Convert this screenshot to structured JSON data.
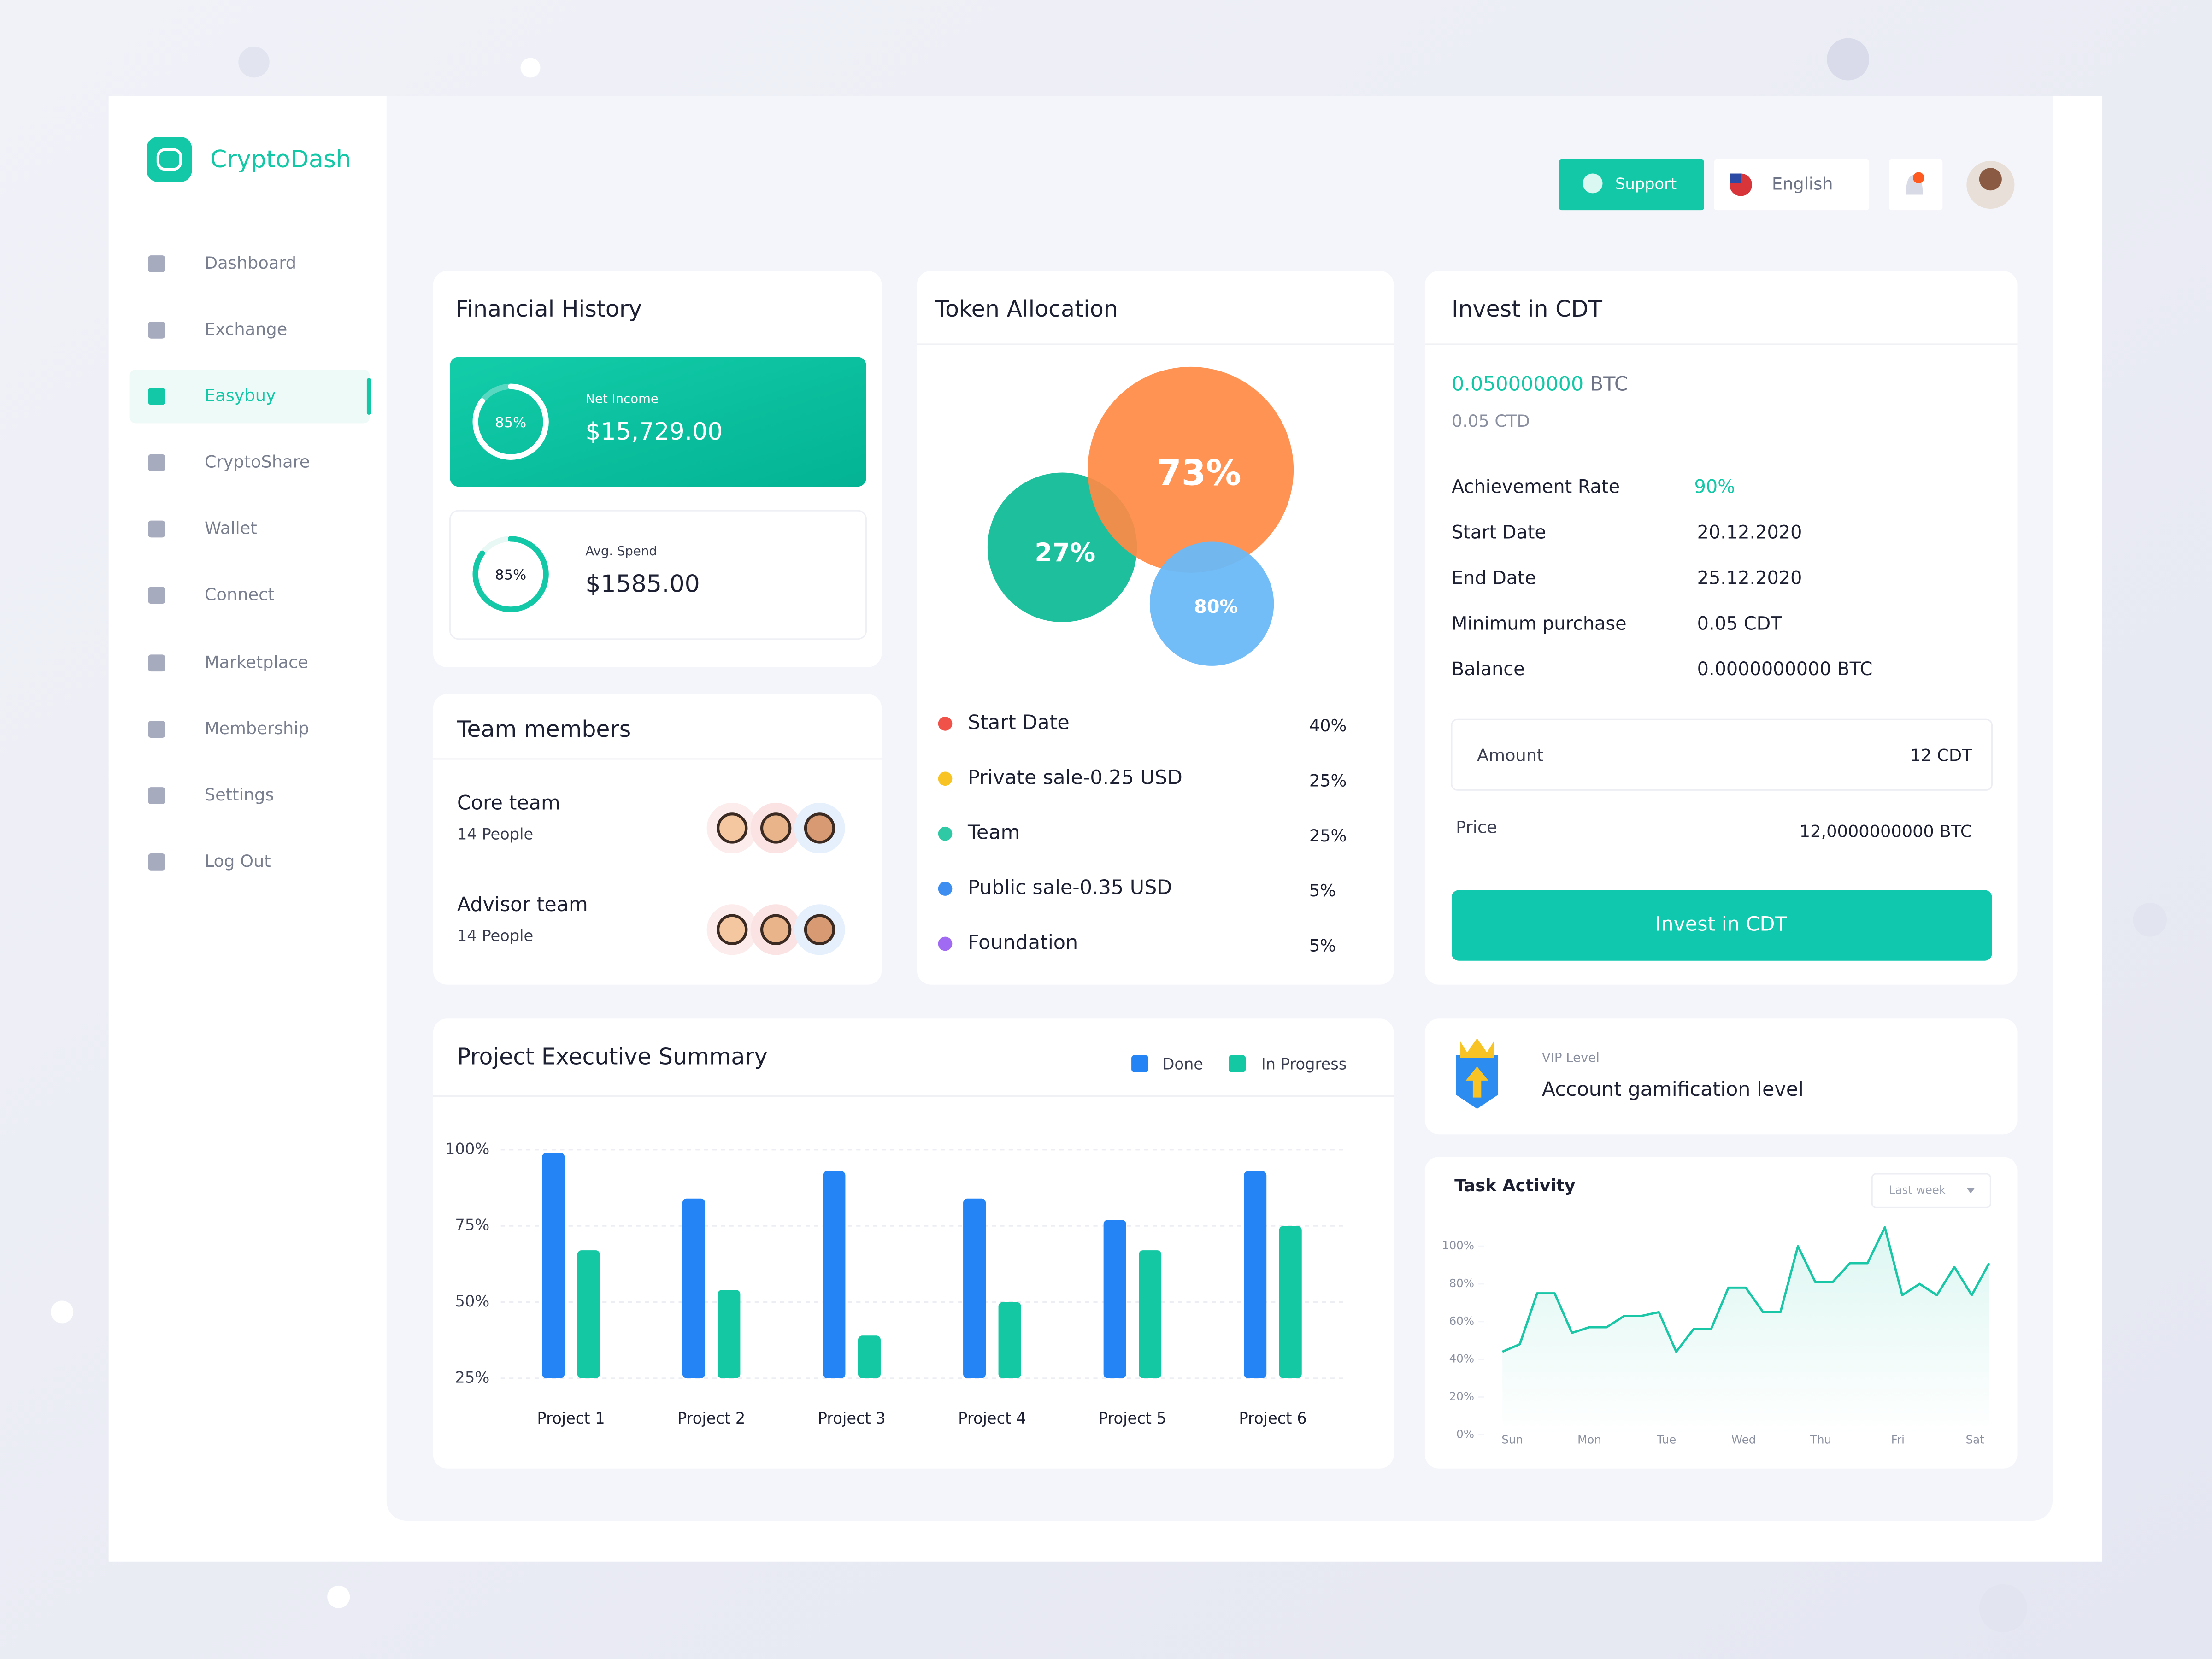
{
  "sidebar": {
    "brand": "CryptoDash",
    "nav": [
      "Dashboard",
      "Exchange",
      "Easybuy",
      "CryptoShare",
      "Wallet",
      "Connect",
      "Marketplace",
      "Membership",
      "Settings",
      "Log Out"
    ]
  },
  "header": {
    "support": "Support",
    "language": "English"
  },
  "financial_history": {
    "title": "Financial History",
    "items": [
      {
        "label": "Net Income",
        "amount": "$15,729.00",
        "progress": 85,
        "progress_label": "85%"
      },
      {
        "label": "Avg. Spend",
        "amount": "$1585.00",
        "progress": 85,
        "progress_label": "85%"
      }
    ]
  },
  "team_members": {
    "title": "Team members",
    "groups": [
      {
        "name": "Core team",
        "count": "14 People"
      },
      {
        "name": "Advisor team",
        "count": "14 People"
      }
    ]
  },
  "token_allocation": {
    "title": "Token Allocation",
    "bubbles": [
      "27%",
      "73%",
      "80%"
    ],
    "legend": [
      {
        "name": "Start Date",
        "share": "40%",
        "color": "#f0524a"
      },
      {
        "name": "Private sale-0.25 USD",
        "share": "25%",
        "color": "#f7c325"
      },
      {
        "name": "Team",
        "share": "25%",
        "color": "#2fcaa5"
      },
      {
        "name": "Public sale-0.35 USD",
        "share": "5%",
        "color": "#3d8ef0"
      },
      {
        "name": "Foundation",
        "share": "5%",
        "color": "#a06af2"
      }
    ]
  },
  "invest": {
    "title": "Invest in CDT",
    "btc_amount": "0.050000000",
    "btc_unit": "BTC",
    "ctd_amount": "0.05 CTD",
    "details": [
      {
        "label": "Achievement Rate",
        "value": "90%"
      },
      {
        "label": "Start Date",
        "value": "20.12.2020"
      },
      {
        "label": "End Date",
        "value": "25.12.2020"
      },
      {
        "label": "Minimum purchase",
        "value": "0.05 CDT"
      },
      {
        "label": "Balance",
        "value": "0.0000000000 BTC"
      }
    ],
    "amount_label": "Amount",
    "amount_value": "12 CDT",
    "price_label": "Price",
    "price_value": "12,0000000000 BTC",
    "button": "Invest in CDT"
  },
  "vip": {
    "label": "VIP Level",
    "title": "Account gamification level"
  },
  "project_summary": {
    "type": "bar",
    "title": "Project Executive Summary",
    "categories": [
      "Project 1",
      "Project 2",
      "Project 3",
      "Project 4",
      "Project 5",
      "Project 6"
    ],
    "series": [
      {
        "name": "Done",
        "color": "#2484f5",
        "values": [
          99,
          84,
          93,
          84,
          77,
          93
        ]
      },
      {
        "name": "In Progress",
        "color": "#13c8a2",
        "values": [
          67,
          54,
          39,
          50,
          67,
          75
        ]
      }
    ],
    "ylim": [
      25,
      100
    ],
    "yticks": [
      {
        "value": 25,
        "label": "25%"
      },
      {
        "value": 50,
        "label": "50%"
      },
      {
        "value": 75,
        "label": "75%"
      },
      {
        "value": 100,
        "label": "100%"
      }
    ]
  },
  "task_activity": {
    "type": "line",
    "title": "Task Activity",
    "period": "Last week",
    "categories": [
      "Sun",
      "Mon",
      "Tue",
      "Wed",
      "Thu",
      "Fri",
      "Sat"
    ],
    "values": [
      44,
      48,
      75,
      75,
      54,
      57,
      57,
      63,
      63,
      65,
      44,
      56,
      56,
      78,
      78,
      65,
      65,
      100,
      81,
      81,
      91,
      91,
      110,
      74,
      80,
      74,
      89,
      74,
      91
    ],
    "color": "#19c6a6",
    "ylim": [
      0,
      110
    ],
    "yticks": [
      {
        "value": 0,
        "label": "0%"
      },
      {
        "value": 20,
        "label": "20%"
      },
      {
        "value": 40,
        "label": "40%"
      },
      {
        "value": 60,
        "label": "60%"
      },
      {
        "value": 80,
        "label": "80%"
      },
      {
        "value": 100,
        "label": "100%"
      }
    ]
  }
}
